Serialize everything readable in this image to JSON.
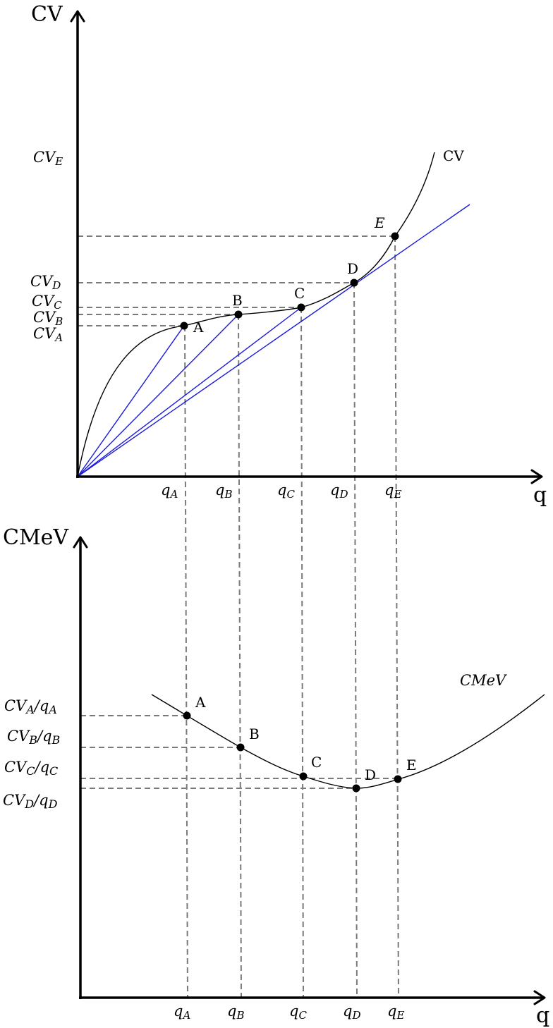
{
  "top": {
    "y_axis_title": "CV",
    "x_axis_title": "q",
    "curve_label": "CV",
    "points": [
      "A",
      "B",
      "C",
      "D",
      "E"
    ],
    "x_ticks": [
      {
        "base": "q",
        "sub": "A"
      },
      {
        "base": "q",
        "sub": "B"
      },
      {
        "base": "q",
        "sub": "C"
      },
      {
        "base": "q",
        "sub": "D"
      },
      {
        "base": "q",
        "sub": "E"
      }
    ],
    "y_ticks": [
      {
        "base": "CV",
        "sub": "E"
      },
      {
        "base": "CV",
        "sub": "D"
      },
      {
        "base": "CV",
        "sub": "C"
      },
      {
        "base": "CV",
        "sub": "B"
      },
      {
        "base": "CV",
        "sub": "A"
      }
    ]
  },
  "bottom": {
    "y_axis_title": "CMeV",
    "x_axis_title": "q",
    "curve_label": "CMeV",
    "points": [
      "A",
      "B",
      "C",
      "D",
      "E"
    ],
    "x_ticks": [
      {
        "base": "q",
        "sub": "A"
      },
      {
        "base": "q",
        "sub": "B"
      },
      {
        "base": "q",
        "sub": "C"
      },
      {
        "base": "q",
        "sub": "D"
      },
      {
        "base": "q",
        "sub": "E"
      }
    ],
    "y_ticks": [
      {
        "a": "CV",
        "as": "A",
        "sep": "/",
        "b": "q",
        "bs": "A"
      },
      {
        "a": "CV",
        "as": "B",
        "sep": "/",
        "b": "q",
        "bs": "B"
      },
      {
        "a": "CV",
        "as": "C",
        "sep": "/",
        "b": "q",
        "bs": "C"
      },
      {
        "a": "CV",
        "as": "D",
        "sep": "/",
        "b": "q",
        "bs": "D"
      }
    ]
  }
}
